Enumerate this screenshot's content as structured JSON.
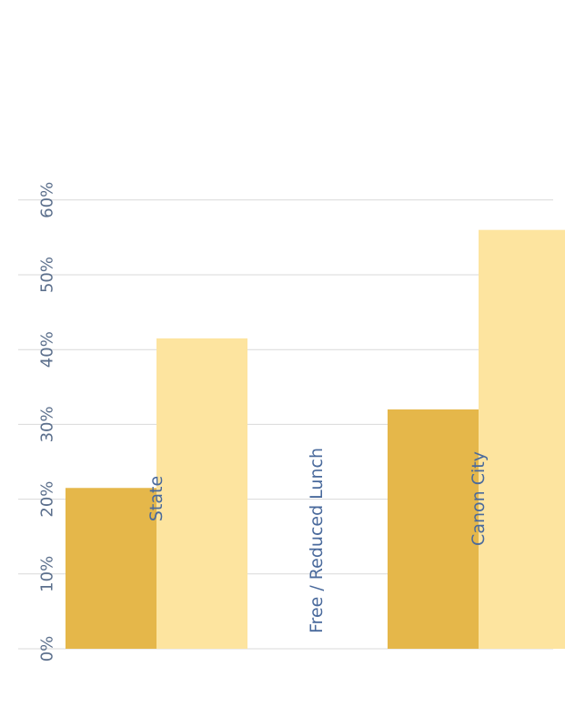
{
  "chart_data": {
    "type": "bar",
    "orientation": "rotated-90",
    "categories": [
      "Canon City",
      "State"
    ],
    "series": [
      {
        "values": [
          32,
          21.5
        ],
        "color": "#e5b74a"
      },
      {
        "values": [
          56,
          41.5
        ],
        "color": "#fde49f"
      }
    ],
    "xlabel": "Free / Reduced Lunch",
    "ylabel": "",
    "value_ticks": [
      "0%",
      "10%",
      "20%",
      "30%",
      "40%",
      "50%",
      "60%"
    ],
    "ylim": [
      0,
      60
    ],
    "grid": true,
    "colors": {
      "grid": "#d9d9d9",
      "tick_text": "#5b6f8c",
      "category_text": "#4a6a9c",
      "axis_title_text": "#4a6a9c"
    }
  }
}
